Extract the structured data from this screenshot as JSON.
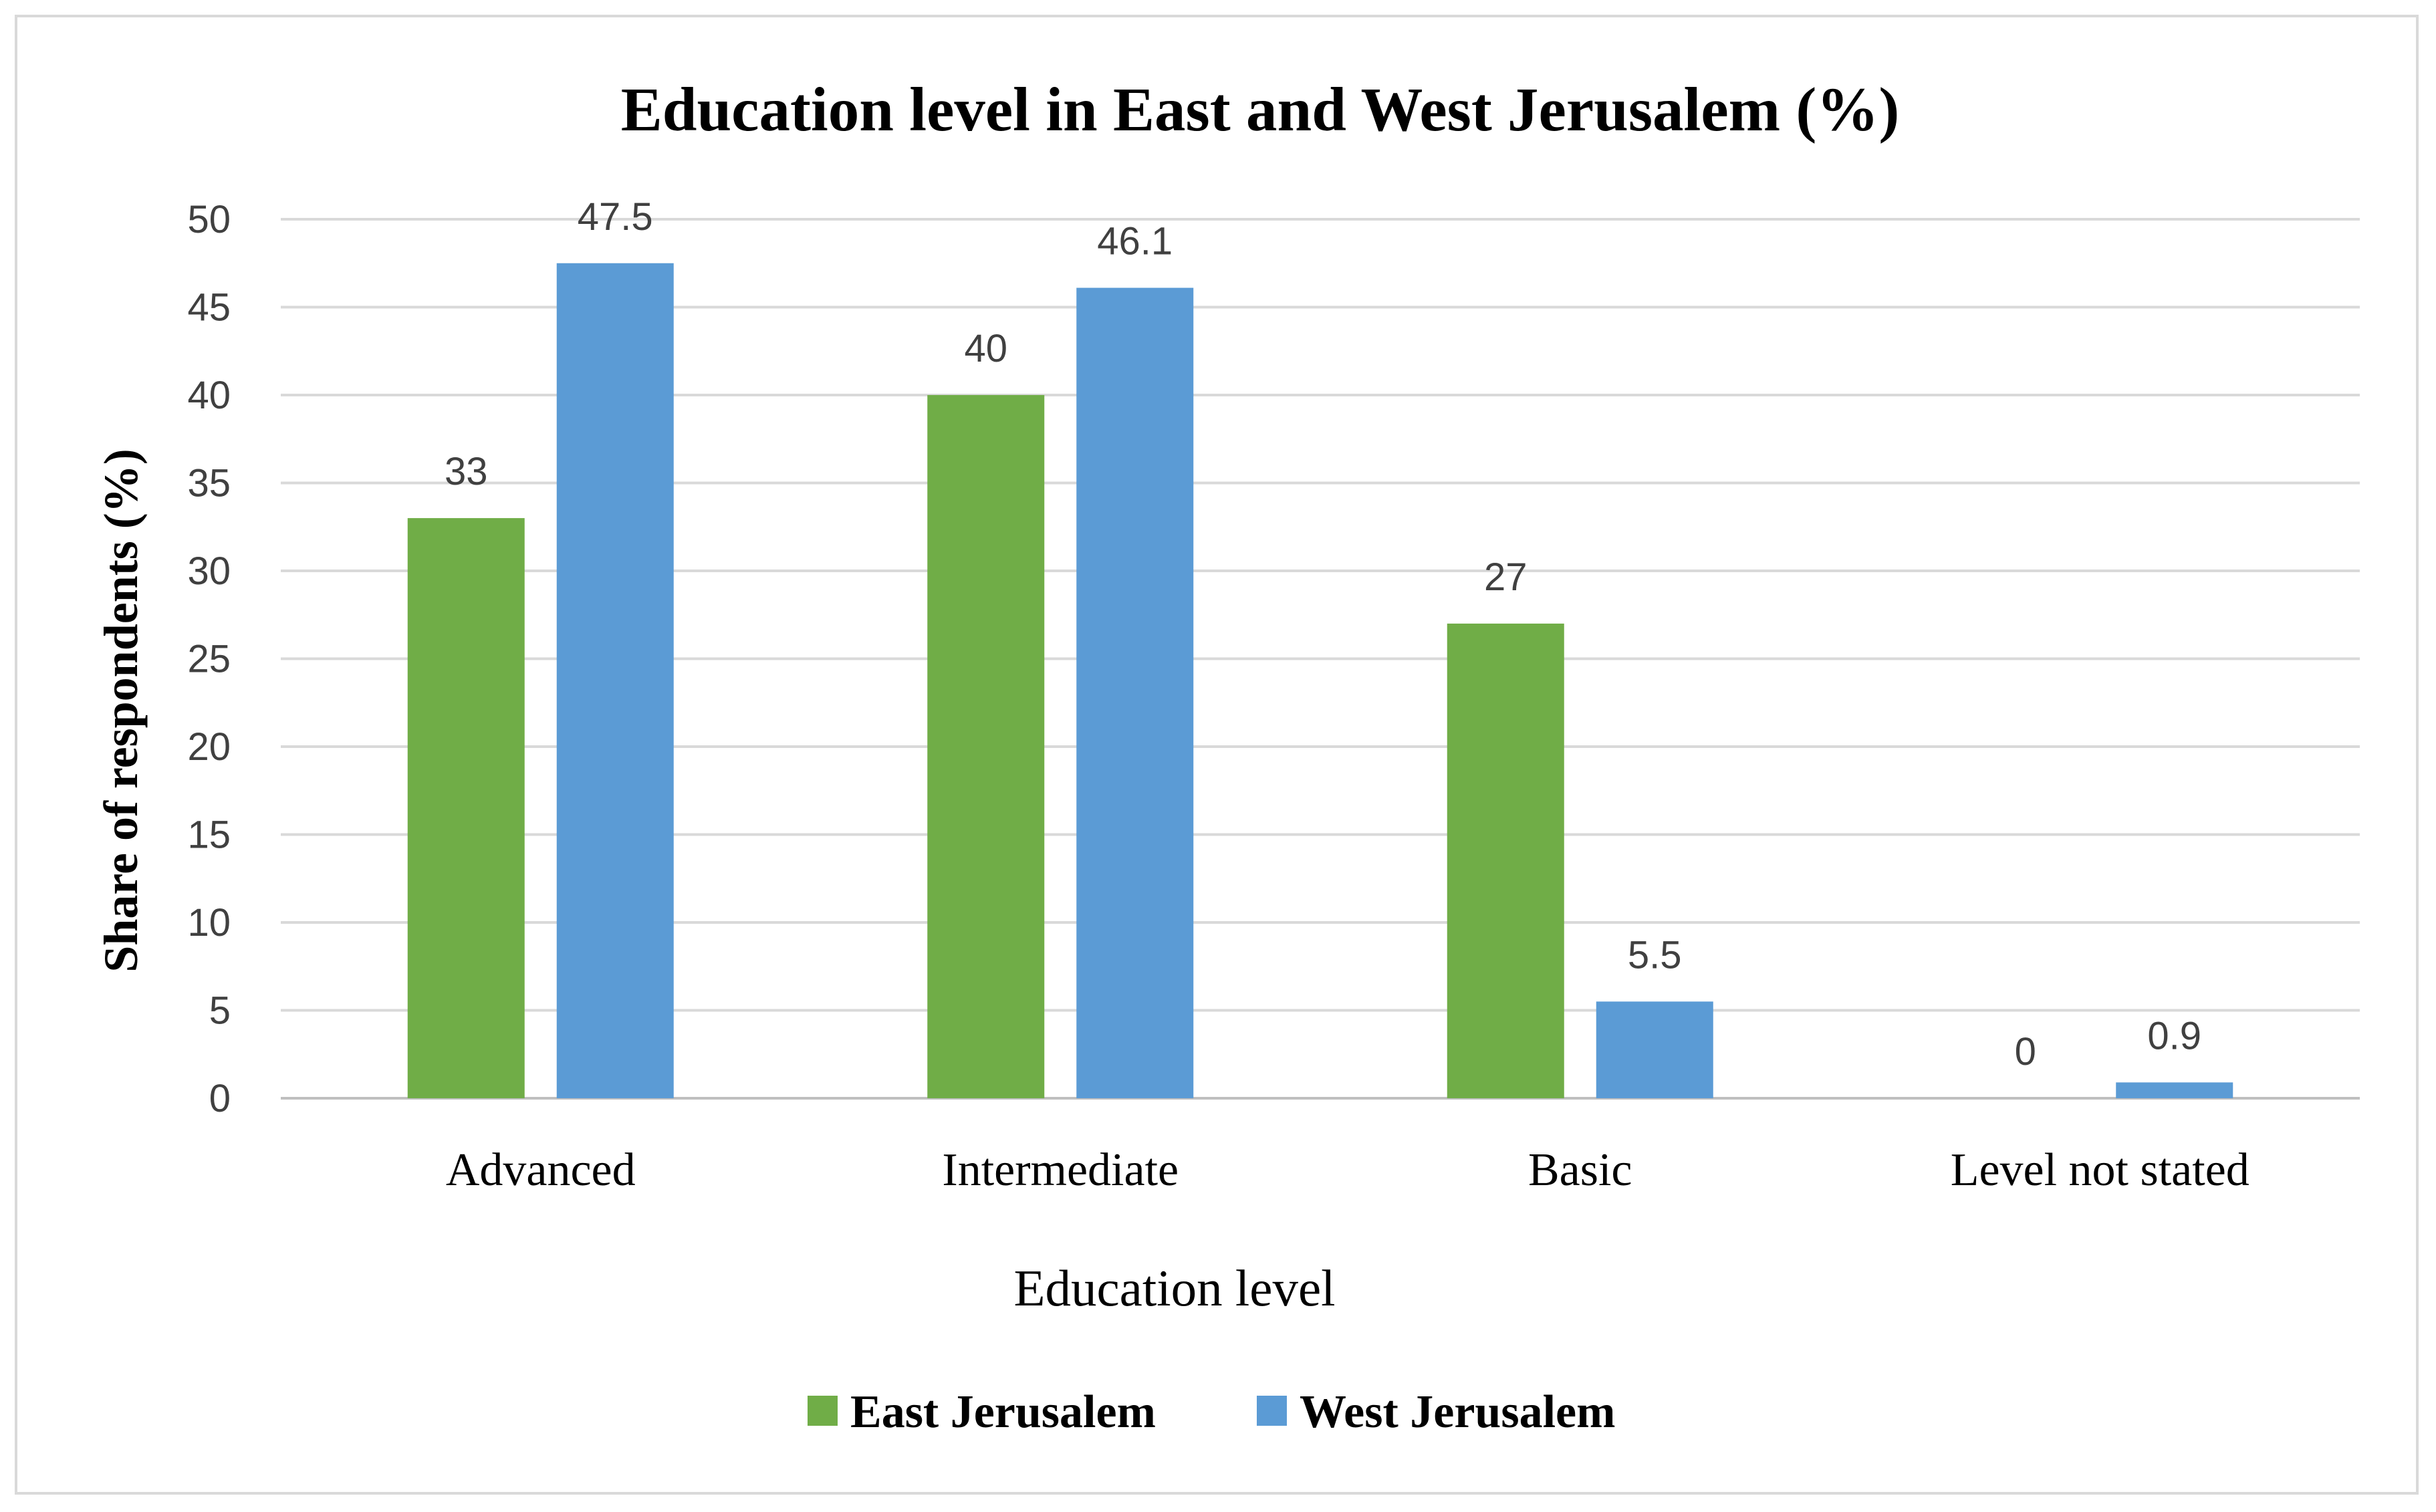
{
  "chart_data": {
    "type": "bar",
    "title": "Education level in East and West Jerusalem (%)",
    "xlabel": "Education level",
    "ylabel": "Share of respondents (%)",
    "categories": [
      "Advanced",
      "Intermediate",
      "Basic",
      "Level not stated"
    ],
    "series": [
      {
        "name": "East Jerusalem",
        "color": "#70ad47",
        "values": [
          33,
          40,
          27,
          0
        ],
        "labels": [
          "33",
          "40",
          "27",
          "0"
        ]
      },
      {
        "name": "West Jerusalem",
        "color": "#5b9bd5",
        "values": [
          47.5,
          46.1,
          5.5,
          0.9
        ],
        "labels": [
          "47.5",
          "46.1",
          "5.5",
          "0.9"
        ]
      }
    ],
    "ylim": [
      0,
      50
    ],
    "yticks": [
      0,
      5,
      10,
      15,
      20,
      25,
      30,
      35,
      40,
      45,
      50
    ],
    "grid": true,
    "legend_position": "bottom"
  }
}
